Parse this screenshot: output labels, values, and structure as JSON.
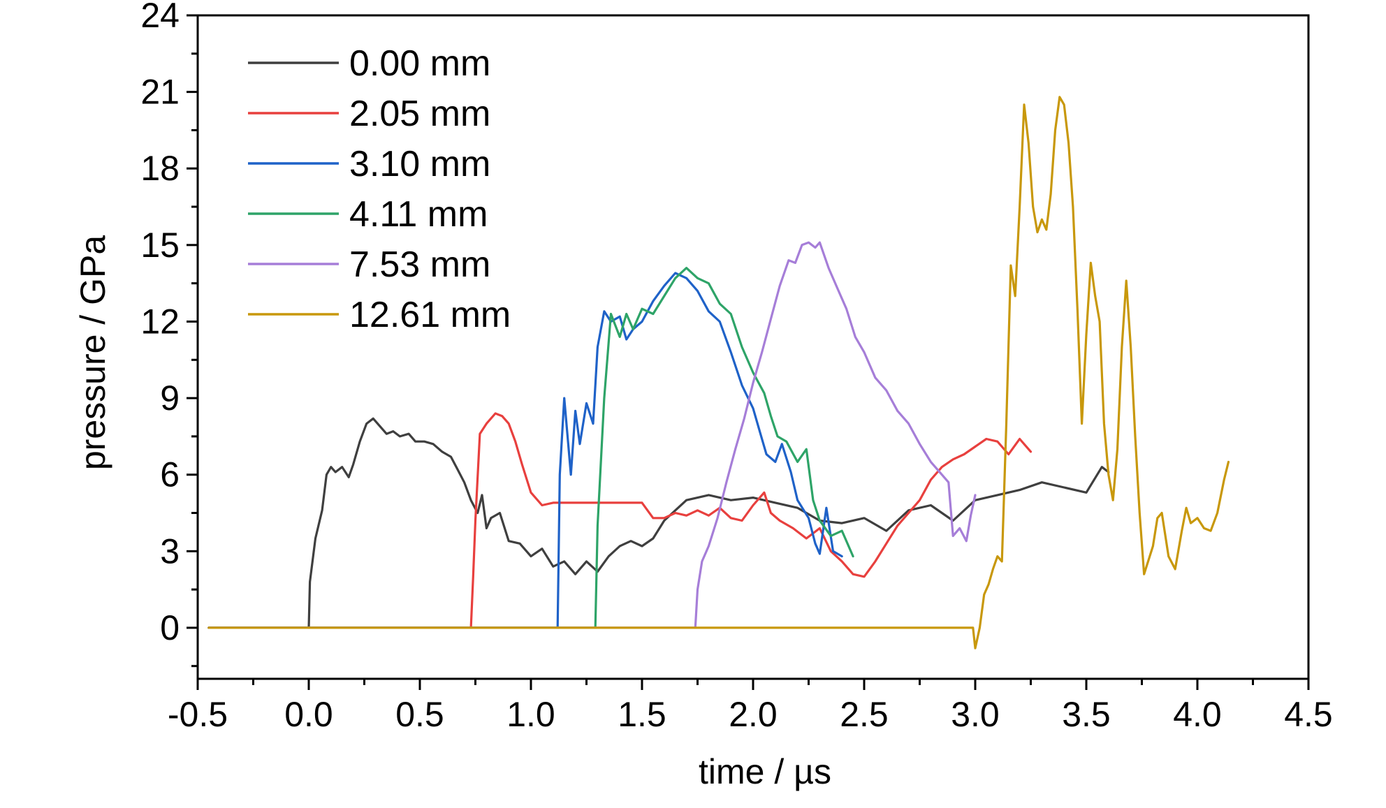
{
  "chart_data": {
    "type": "line",
    "xlabel": "time / µs",
    "ylabel": "pressure / GPa",
    "xlim": [
      -0.5,
      4.5
    ],
    "ylim": [
      -2,
      24
    ],
    "xticks": [
      -0.5,
      0.0,
      0.5,
      1.0,
      1.5,
      2.0,
      2.5,
      3.0,
      3.5,
      4.0,
      4.5
    ],
    "xtick_labels": [
      "-0.5",
      "0.0",
      "0.5",
      "1.0",
      "1.5",
      "2.0",
      "2.5",
      "3.0",
      "3.5",
      "4.0",
      "4.5"
    ],
    "yticks": [
      0,
      3,
      6,
      9,
      12,
      15,
      18,
      21,
      24
    ],
    "ytick_labels": [
      "0",
      "3",
      "6",
      "9",
      "12",
      "15",
      "18",
      "21",
      "24"
    ],
    "grid": false,
    "legend_position": "top-left",
    "series": [
      {
        "name": "0.00 mm",
        "color": "#3f3f3f",
        "points": [
          [
            -0.45,
            0
          ],
          [
            0.0,
            0
          ],
          [
            0.005,
            1.8
          ],
          [
            0.03,
            3.5
          ],
          [
            0.06,
            4.6
          ],
          [
            0.08,
            6.0
          ],
          [
            0.1,
            6.3
          ],
          [
            0.12,
            6.1
          ],
          [
            0.15,
            6.3
          ],
          [
            0.18,
            5.9
          ],
          [
            0.2,
            6.4
          ],
          [
            0.23,
            7.3
          ],
          [
            0.26,
            8.0
          ],
          [
            0.29,
            8.2
          ],
          [
            0.32,
            7.9
          ],
          [
            0.35,
            7.6
          ],
          [
            0.38,
            7.7
          ],
          [
            0.41,
            7.5
          ],
          [
            0.45,
            7.6
          ],
          [
            0.48,
            7.3
          ],
          [
            0.52,
            7.3
          ],
          [
            0.56,
            7.2
          ],
          [
            0.6,
            6.9
          ],
          [
            0.64,
            6.7
          ],
          [
            0.67,
            6.2
          ],
          [
            0.7,
            5.7
          ],
          [
            0.73,
            5.0
          ],
          [
            0.76,
            4.5
          ],
          [
            0.78,
            5.2
          ],
          [
            0.8,
            3.9
          ],
          [
            0.82,
            4.3
          ],
          [
            0.86,
            4.5
          ],
          [
            0.9,
            3.4
          ],
          [
            0.95,
            3.3
          ],
          [
            1.0,
            2.8
          ],
          [
            1.05,
            3.1
          ],
          [
            1.1,
            2.4
          ],
          [
            1.15,
            2.6
          ],
          [
            1.2,
            2.1
          ],
          [
            1.25,
            2.6
          ],
          [
            1.3,
            2.2
          ],
          [
            1.35,
            2.8
          ],
          [
            1.4,
            3.2
          ],
          [
            1.45,
            3.4
          ],
          [
            1.5,
            3.2
          ],
          [
            1.55,
            3.5
          ],
          [
            1.6,
            4.2
          ],
          [
            1.65,
            4.6
          ],
          [
            1.7,
            5.0
          ],
          [
            1.8,
            5.2
          ],
          [
            1.9,
            5.0
          ],
          [
            2.0,
            5.1
          ],
          [
            2.1,
            4.9
          ],
          [
            2.2,
            4.7
          ],
          [
            2.3,
            4.2
          ],
          [
            2.4,
            4.1
          ],
          [
            2.5,
            4.3
          ],
          [
            2.6,
            3.8
          ],
          [
            2.7,
            4.6
          ],
          [
            2.8,
            4.8
          ],
          [
            2.9,
            4.2
          ],
          [
            3.0,
            5.0
          ],
          [
            3.1,
            5.2
          ],
          [
            3.2,
            5.4
          ],
          [
            3.3,
            5.7
          ],
          [
            3.4,
            5.5
          ],
          [
            3.5,
            5.3
          ],
          [
            3.57,
            6.3
          ],
          [
            3.6,
            6.1
          ]
        ]
      },
      {
        "name": "2.05 mm",
        "color": "#e8403e",
        "points": [
          [
            -0.45,
            0
          ],
          [
            0.73,
            0
          ],
          [
            0.74,
            2.0
          ],
          [
            0.75,
            4.2
          ],
          [
            0.77,
            7.6
          ],
          [
            0.8,
            8.0
          ],
          [
            0.84,
            8.4
          ],
          [
            0.87,
            8.3
          ],
          [
            0.9,
            8.0
          ],
          [
            0.93,
            7.3
          ],
          [
            0.96,
            6.4
          ],
          [
            1.0,
            5.3
          ],
          [
            1.05,
            4.8
          ],
          [
            1.1,
            4.9
          ],
          [
            1.5,
            4.9
          ],
          [
            1.55,
            4.3
          ],
          [
            1.6,
            4.3
          ],
          [
            1.65,
            4.5
          ],
          [
            1.7,
            4.4
          ],
          [
            1.75,
            4.6
          ],
          [
            1.8,
            4.4
          ],
          [
            1.85,
            4.7
          ],
          [
            1.9,
            4.3
          ],
          [
            1.95,
            4.2
          ],
          [
            2.0,
            4.8
          ],
          [
            2.05,
            5.3
          ],
          [
            2.08,
            4.5
          ],
          [
            2.12,
            4.2
          ],
          [
            2.18,
            3.9
          ],
          [
            2.24,
            3.5
          ],
          [
            2.3,
            3.9
          ],
          [
            2.35,
            3.0
          ],
          [
            2.4,
            2.6
          ],
          [
            2.45,
            2.1
          ],
          [
            2.5,
            2.0
          ],
          [
            2.55,
            2.6
          ],
          [
            2.6,
            3.3
          ],
          [
            2.65,
            4.0
          ],
          [
            2.7,
            4.5
          ],
          [
            2.75,
            5.0
          ],
          [
            2.8,
            5.8
          ],
          [
            2.85,
            6.3
          ],
          [
            2.9,
            6.6
          ],
          [
            2.95,
            6.8
          ],
          [
            3.0,
            7.1
          ],
          [
            3.05,
            7.4
          ],
          [
            3.1,
            7.3
          ],
          [
            3.15,
            6.8
          ],
          [
            3.2,
            7.4
          ],
          [
            3.25,
            6.9
          ]
        ]
      },
      {
        "name": "3.10 mm",
        "color": "#1f62c8",
        "points": [
          [
            -0.45,
            0
          ],
          [
            1.12,
            0
          ],
          [
            1.13,
            6.0
          ],
          [
            1.15,
            9.0
          ],
          [
            1.18,
            6.0
          ],
          [
            1.2,
            8.5
          ],
          [
            1.22,
            7.2
          ],
          [
            1.25,
            8.8
          ],
          [
            1.28,
            8.0
          ],
          [
            1.3,
            11.0
          ],
          [
            1.33,
            12.4
          ],
          [
            1.36,
            12.0
          ],
          [
            1.4,
            12.2
          ],
          [
            1.43,
            11.3
          ],
          [
            1.46,
            11.7
          ],
          [
            1.5,
            12.0
          ],
          [
            1.55,
            12.8
          ],
          [
            1.6,
            13.4
          ],
          [
            1.65,
            13.9
          ],
          [
            1.7,
            13.7
          ],
          [
            1.75,
            13.2
          ],
          [
            1.8,
            12.4
          ],
          [
            1.85,
            12.0
          ],
          [
            1.9,
            10.8
          ],
          [
            1.95,
            9.5
          ],
          [
            2.0,
            8.6
          ],
          [
            2.03,
            7.7
          ],
          [
            2.06,
            6.8
          ],
          [
            2.1,
            6.5
          ],
          [
            2.13,
            7.2
          ],
          [
            2.17,
            6.1
          ],
          [
            2.2,
            5.0
          ],
          [
            2.25,
            4.3
          ],
          [
            2.28,
            3.3
          ],
          [
            2.3,
            2.9
          ],
          [
            2.33,
            4.7
          ],
          [
            2.36,
            3.0
          ],
          [
            2.4,
            2.8
          ]
        ]
      },
      {
        "name": "4.11 mm",
        "color": "#2ea468",
        "points": [
          [
            -0.45,
            0
          ],
          [
            1.29,
            0
          ],
          [
            1.3,
            4.0
          ],
          [
            1.33,
            9.0
          ],
          [
            1.36,
            12.3
          ],
          [
            1.4,
            11.4
          ],
          [
            1.43,
            12.3
          ],
          [
            1.46,
            11.7
          ],
          [
            1.5,
            12.5
          ],
          [
            1.55,
            12.3
          ],
          [
            1.6,
            13.0
          ],
          [
            1.65,
            13.7
          ],
          [
            1.7,
            14.1
          ],
          [
            1.75,
            13.7
          ],
          [
            1.8,
            13.5
          ],
          [
            1.85,
            12.7
          ],
          [
            1.9,
            12.3
          ],
          [
            1.95,
            11.0
          ],
          [
            2.0,
            10.0
          ],
          [
            2.05,
            9.2
          ],
          [
            2.08,
            8.3
          ],
          [
            2.11,
            7.5
          ],
          [
            2.15,
            7.3
          ],
          [
            2.2,
            6.5
          ],
          [
            2.24,
            7.0
          ],
          [
            2.27,
            5.0
          ],
          [
            2.3,
            4.2
          ],
          [
            2.35,
            3.6
          ],
          [
            2.4,
            3.8
          ],
          [
            2.45,
            2.8
          ]
        ]
      },
      {
        "name": "7.53 mm",
        "color": "#a67ed8",
        "points": [
          [
            -0.45,
            0
          ],
          [
            1.74,
            0
          ],
          [
            1.75,
            1.5
          ],
          [
            1.77,
            2.6
          ],
          [
            1.8,
            3.2
          ],
          [
            1.84,
            4.3
          ],
          [
            1.88,
            5.7
          ],
          [
            1.92,
            7.0
          ],
          [
            1.96,
            8.2
          ],
          [
            2.0,
            9.6
          ],
          [
            2.04,
            10.8
          ],
          [
            2.08,
            12.1
          ],
          [
            2.12,
            13.4
          ],
          [
            2.16,
            14.4
          ],
          [
            2.19,
            14.3
          ],
          [
            2.22,
            15.0
          ],
          [
            2.25,
            15.1
          ],
          [
            2.28,
            14.9
          ],
          [
            2.3,
            15.1
          ],
          [
            2.34,
            14.1
          ],
          [
            2.38,
            13.3
          ],
          [
            2.42,
            12.5
          ],
          [
            2.46,
            11.4
          ],
          [
            2.5,
            10.8
          ],
          [
            2.55,
            9.8
          ],
          [
            2.6,
            9.3
          ],
          [
            2.65,
            8.5
          ],
          [
            2.7,
            8.0
          ],
          [
            2.75,
            7.2
          ],
          [
            2.8,
            6.5
          ],
          [
            2.85,
            6.0
          ],
          [
            2.88,
            5.7
          ],
          [
            2.9,
            3.6
          ],
          [
            2.93,
            3.9
          ],
          [
            2.96,
            3.4
          ],
          [
            2.98,
            4.4
          ],
          [
            3.0,
            5.2
          ]
        ]
      },
      {
        "name": "12.61 mm",
        "color": "#c8980c",
        "points": [
          [
            -0.45,
            0
          ],
          [
            2.99,
            0
          ],
          [
            3.0,
            -0.8
          ],
          [
            3.02,
            0.0
          ],
          [
            3.04,
            1.3
          ],
          [
            3.06,
            1.7
          ],
          [
            3.08,
            2.3
          ],
          [
            3.1,
            2.8
          ],
          [
            3.12,
            2.6
          ],
          [
            3.14,
            8.0
          ],
          [
            3.16,
            14.2
          ],
          [
            3.18,
            13.0
          ],
          [
            3.2,
            16.5
          ],
          [
            3.22,
            20.5
          ],
          [
            3.24,
            19.0
          ],
          [
            3.26,
            16.5
          ],
          [
            3.28,
            15.5
          ],
          [
            3.3,
            16.0
          ],
          [
            3.32,
            15.6
          ],
          [
            3.34,
            17.0
          ],
          [
            3.36,
            19.5
          ],
          [
            3.38,
            20.8
          ],
          [
            3.4,
            20.5
          ],
          [
            3.42,
            19.0
          ],
          [
            3.44,
            16.5
          ],
          [
            3.46,
            12.5
          ],
          [
            3.48,
            8.0
          ],
          [
            3.5,
            11.5
          ],
          [
            3.52,
            14.3
          ],
          [
            3.54,
            13.0
          ],
          [
            3.56,
            12.0
          ],
          [
            3.58,
            8.0
          ],
          [
            3.6,
            6.0
          ],
          [
            3.62,
            5.0
          ],
          [
            3.64,
            7.0
          ],
          [
            3.66,
            11.0
          ],
          [
            3.68,
            13.6
          ],
          [
            3.7,
            11.0
          ],
          [
            3.72,
            7.5
          ],
          [
            3.74,
            4.5
          ],
          [
            3.76,
            2.1
          ],
          [
            3.8,
            3.2
          ],
          [
            3.82,
            4.3
          ],
          [
            3.84,
            4.5
          ],
          [
            3.87,
            2.8
          ],
          [
            3.9,
            2.3
          ],
          [
            3.93,
            3.8
          ],
          [
            3.95,
            4.7
          ],
          [
            3.97,
            4.1
          ],
          [
            4.0,
            4.3
          ],
          [
            4.03,
            3.9
          ],
          [
            4.06,
            3.8
          ],
          [
            4.09,
            4.5
          ],
          [
            4.12,
            5.8
          ],
          [
            4.14,
            6.5
          ]
        ]
      }
    ]
  }
}
